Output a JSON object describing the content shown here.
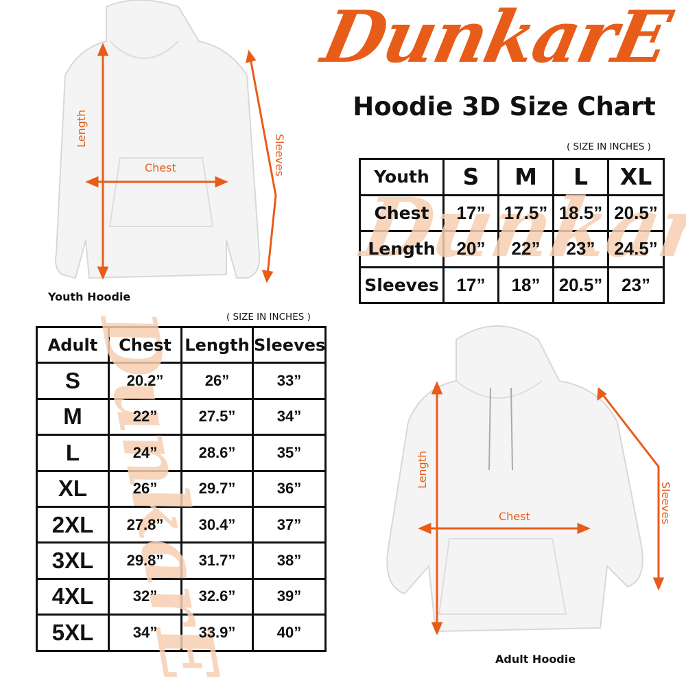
{
  "brand": {
    "logo_text": "DunkarE",
    "color": "#e85c19"
  },
  "title": "Hoodie 3D Size Chart",
  "youth": {
    "unit_note": "( SIZE IN INCHES )",
    "caption": "Youth Hoodie",
    "diagram_labels": {
      "length": "Length",
      "chest": "Chest",
      "sleeves": "Sleeves"
    },
    "header": [
      "Youth",
      "S",
      "M",
      "L",
      "XL"
    ],
    "rows": [
      [
        "Chest",
        "17”",
        "17.5”",
        "18.5”",
        "20.5”"
      ],
      [
        "Length",
        "20”",
        "22”",
        "23”",
        "24.5”"
      ],
      [
        "Sleeves",
        "17”",
        "18”",
        "20.5”",
        "23”"
      ]
    ]
  },
  "adult": {
    "unit_note": "( SIZE IN INCHES )",
    "caption": "Adult Hoodie",
    "diagram_labels": {
      "length": "Length",
      "chest": "Chest",
      "sleeves": "Sleeves"
    },
    "header": [
      "Adult",
      "Chest",
      "Length",
      "Sleeves"
    ],
    "rows": [
      [
        "S",
        "20.2”",
        "26”",
        "33”"
      ],
      [
        "M",
        "22”",
        "27.5”",
        "34”"
      ],
      [
        "L",
        "24”",
        "28.6”",
        "35”"
      ],
      [
        "XL",
        "26”",
        "29.7”",
        "36”"
      ],
      [
        "2XL",
        "27.8”",
        "30.4”",
        "37”"
      ],
      [
        "3XL",
        "29.8”",
        "31.7”",
        "38”"
      ],
      [
        "4XL",
        "32”",
        "32.6”",
        "39”"
      ],
      [
        "5XL",
        "34”",
        "33.9”",
        "40”"
      ]
    ]
  }
}
